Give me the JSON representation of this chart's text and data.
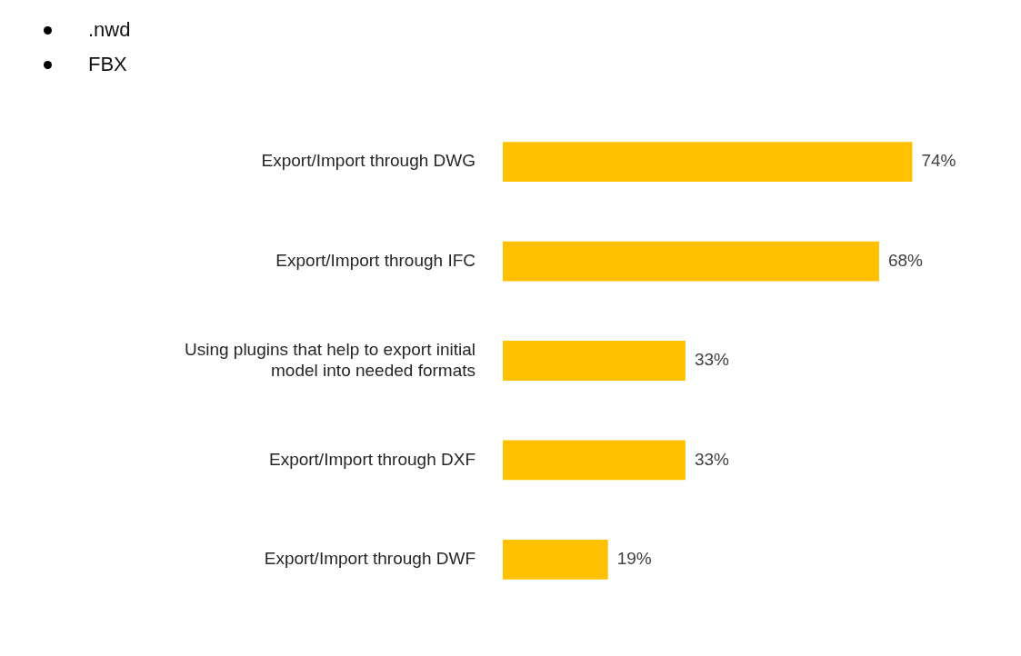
{
  "chart_data": {
    "type": "bar",
    "orientation": "horizontal",
    "categories": [
      "Export/Import through DWG",
      "Export/Import through IFC",
      "Using plugins that help to export initial model into needed formats",
      "Export/Import through DXF",
      "Export/Import through DWF"
    ],
    "values": [
      74,
      68,
      33,
      33,
      19
    ],
    "value_labels": [
      "74%",
      "68%",
      "33%",
      "33%",
      "19%"
    ],
    "color": "#ffc000",
    "tick_labels": "y",
    "legend": false,
    "annotations": [
      ".nwd",
      "FBX"
    ]
  }
}
